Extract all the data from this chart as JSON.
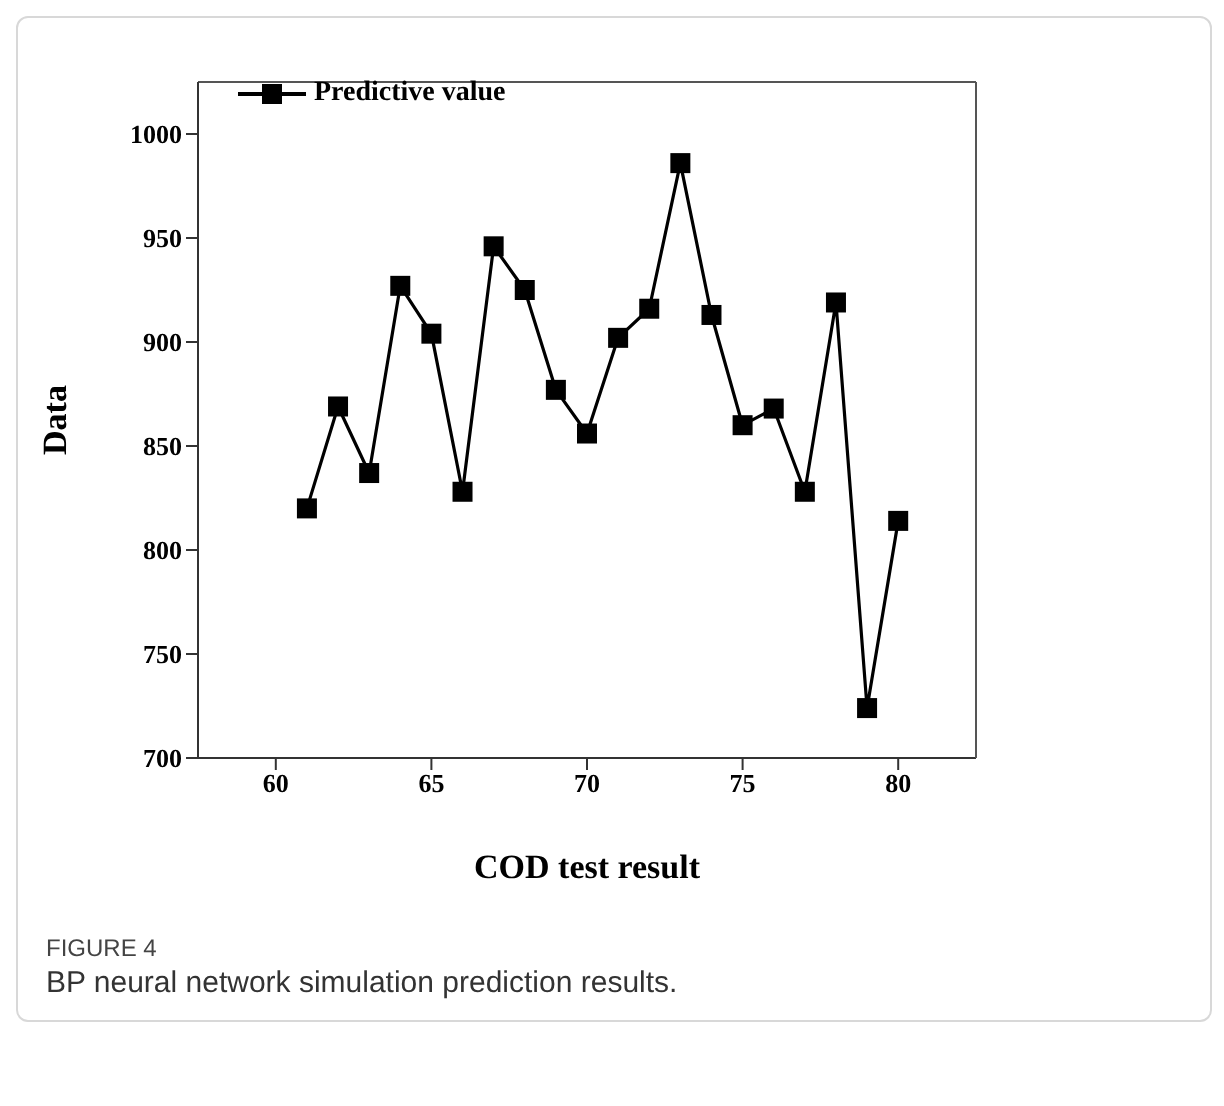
{
  "chart_data": {
    "type": "line",
    "xlabel": "COD test result",
    "ylabel": "Data",
    "x": [
      61,
      62,
      63,
      64,
      65,
      66,
      67,
      68,
      69,
      70,
      71,
      72,
      73,
      74,
      75,
      76,
      77,
      78,
      79,
      80
    ],
    "series": [
      {
        "name": "Predictive value",
        "color": "#000000",
        "values": [
          820,
          869,
          837,
          927,
          904,
          828,
          946,
          925,
          877,
          856,
          902,
          916,
          986,
          913,
          860,
          868,
          828,
          919,
          724,
          814
        ]
      }
    ],
    "xlim": [
      57.5,
      82.5
    ],
    "xticks": [
      60,
      65,
      70,
      75,
      80
    ],
    "ylim": [
      700,
      1025
    ],
    "yticks": [
      700,
      750,
      800,
      850,
      900,
      950,
      1000
    ],
    "grid": false,
    "legend": "top left",
    "marker": "square",
    "line_style": "solid",
    "annotations": [
      "FIGURE 4",
      "BP neural network simulation prediction results."
    ]
  }
}
